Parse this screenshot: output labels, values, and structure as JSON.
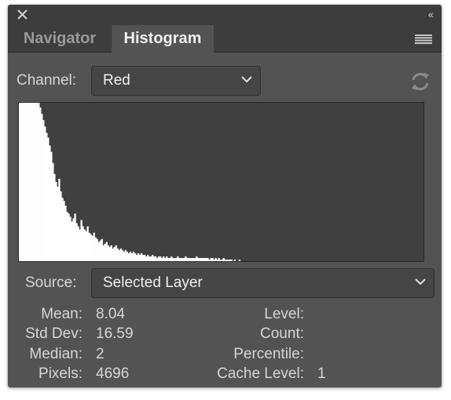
{
  "header": {
    "collapse_glyph": "‹‹",
    "tabs": [
      {
        "label": "Navigator",
        "active": false
      },
      {
        "label": "Histogram",
        "active": true
      }
    ]
  },
  "channel": {
    "label": "Channel:",
    "value": "Red"
  },
  "source": {
    "label": "Source:",
    "value": "Selected Layer"
  },
  "stats": {
    "mean_label": "Mean:",
    "mean": "8.04",
    "stddev_label": "Std Dev:",
    "stddev": "16.59",
    "median_label": "Median:",
    "median": "2",
    "pixels_label": "Pixels:",
    "pixels": "4696",
    "level_label": "Level:",
    "level": "",
    "count_label": "Count:",
    "count": "",
    "percentile_label": "Percentile:",
    "percentile": "",
    "cache_label": "Cache Level:",
    "cache": "1"
  },
  "histogram": {
    "levels": 256,
    "counts": [
      1.0,
      1.0,
      1.0,
      1.0,
      1.0,
      1.0,
      1.0,
      1.0,
      1.0,
      1.0,
      1.0,
      1.0,
      1.0,
      0.97,
      0.93,
      0.89,
      0.85,
      0.81,
      0.78,
      0.73,
      0.69,
      0.62,
      0.55,
      0.5,
      0.47,
      0.52,
      0.44,
      0.4,
      0.38,
      0.35,
      0.31,
      0.3,
      0.28,
      0.25,
      0.27,
      0.3,
      0.24,
      0.22,
      0.2,
      0.26,
      0.22,
      0.2,
      0.19,
      0.22,
      0.18,
      0.17,
      0.16,
      0.18,
      0.15,
      0.14,
      0.12,
      0.13,
      0.14,
      0.1,
      0.11,
      0.12,
      0.1,
      0.09,
      0.1,
      0.08,
      0.09,
      0.1,
      0.08,
      0.07,
      0.08,
      0.07,
      0.06,
      0.07,
      0.06,
      0.05,
      0.06,
      0.05,
      0.06,
      0.05,
      0.04,
      0.05,
      0.04,
      0.05,
      0.04,
      0.04,
      0.03,
      0.04,
      0.03,
      0.03,
      0.04,
      0.03,
      0.03,
      0.02,
      0.03,
      0.03,
      0.02,
      0.03,
      0.02,
      0.03,
      0.02,
      0.02,
      0.03,
      0.02,
      0.02,
      0.02,
      0.03,
      0.02,
      0.02,
      0.02,
      0.02,
      0.03,
      0.02,
      0.02,
      0.02,
      0.02,
      0.02,
      0.02,
      0.03,
      0.02,
      0.02,
      0.02,
      0.02,
      0.02,
      0.02,
      0.02,
      0.01,
      0.02,
      0.02,
      0.01,
      0.02,
      0.01,
      0.02,
      0.01,
      0.01,
      0.02,
      0.01,
      0.01,
      0.01,
      0.01,
      0.01,
      0.0,
      0.01,
      0.0,
      0.0,
      0.01,
      0.0,
      0.0,
      0.0,
      0.0,
      0.0,
      0.0,
      0.0,
      0.0,
      0.0,
      0.0,
      0.0,
      0.0,
      0.0,
      0.0,
      0.0,
      0.0,
      0.0,
      0.0,
      0.0,
      0.0,
      0.0,
      0.0,
      0.0,
      0.0,
      0.0,
      0.0,
      0.0,
      0.0,
      0.0,
      0.0,
      0.0,
      0.0,
      0.0,
      0.0,
      0.0,
      0.0,
      0.0,
      0.0,
      0.0,
      0.0,
      0.0,
      0.0,
      0.0,
      0.0,
      0.0,
      0.0,
      0.0,
      0.0,
      0.0,
      0.0,
      0.0,
      0.0,
      0.0,
      0.0,
      0.0,
      0.0,
      0.0,
      0.0,
      0.0,
      0.0,
      0.0,
      0.0,
      0.0,
      0.0,
      0.0,
      0.0,
      0.0,
      0.0,
      0.0,
      0.0,
      0.0,
      0.0,
      0.0,
      0.0,
      0.0,
      0.0,
      0.0,
      0.0,
      0.0,
      0.0,
      0.0,
      0.0,
      0.0,
      0.0,
      0.0,
      0.0,
      0.0,
      0.0,
      0.0,
      0.0,
      0.0,
      0.0,
      0.0,
      0.0,
      0.0,
      0.0,
      0.0,
      0.0,
      0.0,
      0.0,
      0.0,
      0.0,
      0.0,
      0.0,
      0.0,
      0.0,
      0.0,
      0.0,
      0.0,
      0.0,
      0.0,
      0.0,
      0.0,
      0.0,
      0.0,
      0.0,
      0.0,
      0.0,
      0.0,
      0.0,
      0.0,
      0.0,
      0.0,
      0.0
    ]
  },
  "colors": {
    "panel": "#535353",
    "bar": "#3d3d3d",
    "histogram_bg": "#404040",
    "histogram_fill": "#ffffff"
  },
  "icons": [
    "close-icon",
    "collapse-icon",
    "panel-menu-icon",
    "chevron-down-icon",
    "refresh-icon"
  ]
}
